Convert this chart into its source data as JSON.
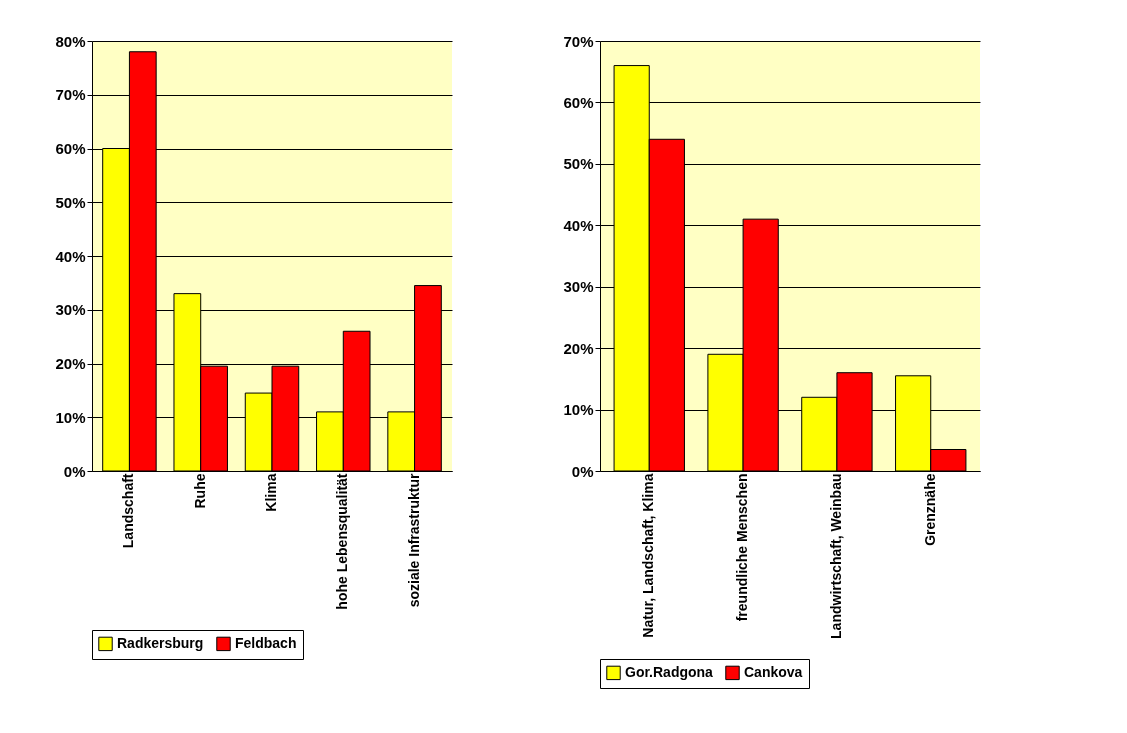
{
  "chart_data": [
    {
      "type": "bar",
      "categories": [
        "Landschaft",
        "Ruhe",
        "Klima",
        "hohe Lebensqualität",
        "soziale Infrastruktur"
      ],
      "series": [
        {
          "name": "Radkersburg",
          "color": "#ffff00",
          "values": [
            60,
            33,
            14.5,
            11,
            11
          ]
        },
        {
          "name": "Feldbach",
          "color": "#ff0000",
          "values": [
            78,
            19.5,
            19.5,
            26,
            34.5
          ]
        }
      ],
      "ylim": [
        0,
        80
      ],
      "yticks": [
        {
          "value": 0,
          "label": "0%"
        },
        {
          "value": 10,
          "label": "10%"
        },
        {
          "value": 20,
          "label": "20%"
        },
        {
          "value": 30,
          "label": "30%"
        },
        {
          "value": 40,
          "label": "40%"
        },
        {
          "value": 50,
          "label": "50%"
        },
        {
          "value": 60,
          "label": "60%"
        },
        {
          "value": 70,
          "label": "70%"
        },
        {
          "value": 80,
          "label": "80%"
        }
      ],
      "grid": "y",
      "legend": "bottom"
    },
    {
      "type": "bar",
      "categories": [
        "Natur, Landschaft, Klima",
        "freundliche Menschen",
        "Landwirtschaft, Weinbau",
        "Grenznähe"
      ],
      "series": [
        {
          "name": "Gor.Radgona",
          "color": "#ffff00",
          "values": [
            66,
            19,
            12,
            15.5
          ]
        },
        {
          "name": "Cankova",
          "color": "#ff0000",
          "values": [
            54,
            41,
            16,
            3.5
          ]
        }
      ],
      "ylim": [
        0,
        70
      ],
      "yticks": [
        {
          "value": 0,
          "label": "0%"
        },
        {
          "value": 10,
          "label": "10%"
        },
        {
          "value": 20,
          "label": "20%"
        },
        {
          "value": 30,
          "label": "30%"
        },
        {
          "value": 40,
          "label": "40%"
        },
        {
          "value": 50,
          "label": "50%"
        },
        {
          "value": 60,
          "label": "60%"
        },
        {
          "value": 70,
          "label": "70%"
        }
      ],
      "grid": "y",
      "legend": "bottom"
    }
  ]
}
